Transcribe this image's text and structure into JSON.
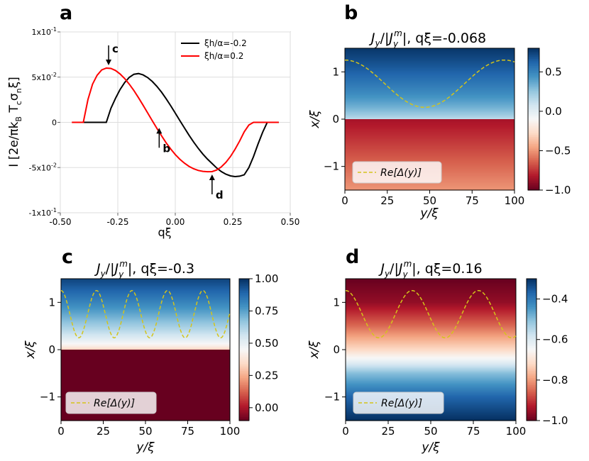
{
  "panel_labels": {
    "a": "a",
    "b": "b",
    "c": "c",
    "d": "d"
  },
  "colors": {
    "black_curve": "#000000",
    "red_curve": "#ff0000",
    "dashed_line": "#d4c41a",
    "cmap_low": "#67001f",
    "cmap_mid": "#f7f7f7",
    "cmap_high": "#053061"
  },
  "chart_data": [
    {
      "panel": "a",
      "type": "line",
      "title": "",
      "xlabel": "qξ",
      "ylabel": "I [2e/πk_B T_c σ_n ξ]",
      "ylabel_parts": {
        "main": "I [2e/πk",
        "s1": "B",
        "mid": " T",
        "s2": "c",
        "mid2": "σ",
        "s3": "n",
        "end": "ξ]"
      },
      "xlim": [
        -0.5,
        0.5
      ],
      "ylim": [
        -0.1,
        0.1
      ],
      "x_ticks": [
        -0.5,
        -0.25,
        0.0,
        0.25,
        0.5
      ],
      "x_tick_labels": [
        "-0.50",
        "-0.25",
        "0.00",
        "0.25",
        "0.50"
      ],
      "y_ticks": [
        0.1,
        0.05,
        0.0,
        -0.05,
        -0.1
      ],
      "y_tick_labels": [
        {
          "base": "1x10",
          "exp": "-1"
        },
        {
          "base": "5x10",
          "exp": "-2"
        },
        {
          "base": "0",
          "exp": ""
        },
        {
          "base": "-5x10",
          "exp": "-2"
        },
        {
          "base": "-1x10",
          "exp": "-1"
        }
      ],
      "grid": true,
      "legend_position": "top-right",
      "series": [
        {
          "name": "ξh/α=-0.2",
          "color": "#000000",
          "x": [
            -0.42,
            -0.3,
            -0.28,
            -0.26,
            -0.24,
            -0.22,
            -0.2,
            -0.18,
            -0.16,
            -0.14,
            -0.12,
            -0.1,
            -0.08,
            -0.06,
            -0.04,
            -0.02,
            0.0,
            0.02,
            0.04,
            0.06,
            0.08,
            0.1,
            0.12,
            0.14,
            0.16,
            0.18,
            0.2,
            0.22,
            0.24,
            0.26,
            0.28,
            0.3,
            0.32,
            0.34,
            0.36,
            0.38,
            0.4,
            0.45
          ],
          "y": [
            0.0,
            0.0,
            0.0155,
            0.0266,
            0.0363,
            0.0441,
            0.0498,
            0.0532,
            0.054,
            0.0525,
            0.0495,
            0.0452,
            0.0398,
            0.0334,
            0.0262,
            0.0184,
            0.0102,
            0.0019,
            -0.0063,
            -0.0143,
            -0.0218,
            -0.0288,
            -0.0351,
            -0.0407,
            -0.0455,
            -0.0504,
            -0.0544,
            -0.0573,
            -0.0592,
            -0.06,
            -0.0595,
            -0.058,
            -0.05,
            -0.038,
            -0.024,
            -0.011,
            0.0,
            0.0
          ]
        },
        {
          "name": "ξh/α=0.2",
          "color": "#ff0000",
          "x": [
            -0.45,
            -0.4,
            -0.38,
            -0.36,
            -0.34,
            -0.32,
            -0.3,
            -0.28,
            -0.26,
            -0.24,
            -0.22,
            -0.2,
            -0.18,
            -0.16,
            -0.14,
            -0.12,
            -0.1,
            -0.08,
            -0.06,
            -0.04,
            -0.02,
            0.0,
            0.02,
            0.04,
            0.06,
            0.08,
            0.1,
            0.12,
            0.14,
            0.16,
            0.18,
            0.2,
            0.22,
            0.24,
            0.26,
            0.28,
            0.3,
            0.32,
            0.34,
            0.45
          ],
          "y": [
            0.0,
            0.0,
            0.0251,
            0.0422,
            0.052,
            0.058,
            0.06,
            0.0596,
            0.0573,
            0.0535,
            0.0484,
            0.0422,
            0.0351,
            0.0272,
            0.019,
            0.0104,
            0.0018,
            -0.0067,
            -0.0148,
            -0.0225,
            -0.0294,
            -0.0356,
            -0.0409,
            -0.0452,
            -0.0487,
            -0.0514,
            -0.0532,
            -0.0542,
            -0.0546,
            -0.0545,
            -0.0527,
            -0.0493,
            -0.0443,
            -0.0377,
            -0.0298,
            -0.0206,
            -0.0104,
            -0.003,
            0.0,
            0.0
          ]
        }
      ],
      "annotations": [
        {
          "label": "c",
          "x": -0.29,
          "y": 0.06,
          "direction": "down"
        },
        {
          "label": "b",
          "x": -0.07,
          "y": -0.003,
          "direction": "up"
        },
        {
          "label": "d",
          "x": 0.16,
          "y": -0.0545,
          "direction": "up"
        }
      ]
    },
    {
      "panel": "b",
      "type": "heatmap",
      "title": "J_y/|J_y^m|, qξ=-0.068",
      "title_value": "qξ=-0.068",
      "xlabel": "y/ξ",
      "ylabel": "x/ξ",
      "xlim": [
        0,
        100
      ],
      "ylim": [
        -1.5,
        1.5
      ],
      "x_ticks": [
        0,
        25,
        50,
        75,
        100
      ],
      "y_ticks": [
        1,
        0,
        -1
      ],
      "y_tick_labels": [
        "1",
        "0",
        "−1"
      ],
      "colorbar": {
        "min": -1.0,
        "max": 0.8,
        "ticks": [
          0.5,
          0.0,
          -0.5,
          -1.0
        ],
        "tick_labels": [
          "0.5",
          "0.0",
          "−0.5",
          "−1.0"
        ]
      },
      "field": {
        "upper": {
          "at_zero": 0.1,
          "at_top": 0.78
        },
        "lower": {
          "at_zero": -0.85,
          "at_bottom": -0.5
        }
      },
      "dashed_line": {
        "label": "Re[Δ(y)]",
        "mean": 0.75,
        "amplitude": 0.5,
        "period": 94,
        "phase_shift": 0
      },
      "legend_position": "bottom-left"
    },
    {
      "panel": "c",
      "type": "heatmap",
      "title": "J_y/|J_y^m|, qξ=-0.3",
      "title_value": "qξ=-0.3",
      "xlabel": "y/ξ",
      "ylabel": "x/ξ",
      "xlim": [
        0,
        100
      ],
      "ylim": [
        -1.5,
        1.5
      ],
      "x_ticks": [
        0,
        25,
        50,
        75,
        100
      ],
      "y_ticks": [
        1,
        0,
        -1
      ],
      "y_tick_labels": [
        "1",
        "0",
        "−1"
      ],
      "colorbar": {
        "min": -0.1,
        "max": 1.0,
        "ticks": [
          1.0,
          0.75,
          0.5,
          0.25,
          0.0
        ],
        "tick_labels": [
          "1.00",
          "0.75",
          "0.50",
          "0.25",
          "0.00"
        ]
      },
      "field": {
        "upper": {
          "at_zero": 0.3,
          "at_top": 0.96
        },
        "lower": {
          "at_zero": -0.1,
          "at_bottom": -0.1
        }
      },
      "dashed_line": {
        "label": "Re[Δ(y)]",
        "mean": 0.75,
        "amplitude": 0.5,
        "period": 21,
        "phase_shift": 0
      },
      "legend_position": "bottom-left"
    },
    {
      "panel": "d",
      "type": "heatmap",
      "title": "J_y/|J_y^m|, qξ=0.16",
      "title_value": "qξ=0.16",
      "xlabel": "y/ξ",
      "ylabel": "x/ξ",
      "xlim": [
        0,
        100
      ],
      "ylim": [
        -1.5,
        1.5
      ],
      "x_ticks": [
        0,
        25,
        50,
        75,
        100
      ],
      "y_ticks": [
        1,
        0,
        -1
      ],
      "y_tick_labels": [
        "1",
        "0",
        "−1"
      ],
      "colorbar": {
        "min": -1.0,
        "max": -0.3,
        "ticks": [
          -0.4,
          -0.6,
          -0.8,
          -1.0
        ],
        "tick_labels": [
          "−0.4",
          "−0.6",
          "−0.8",
          "−1.0"
        ]
      },
      "field": {
        "profile": [
          [
            1.5,
            -1.0
          ],
          [
            1.0,
            -0.96
          ],
          [
            0.5,
            -0.85
          ],
          [
            0.0,
            -0.72
          ],
          [
            -0.25,
            -0.62
          ],
          [
            -0.5,
            -0.5
          ],
          [
            -1.0,
            -0.37
          ],
          [
            -1.5,
            -0.3
          ]
        ]
      },
      "dashed_line": {
        "label": "Re[Δ(y)]",
        "mean": 0.75,
        "amplitude": 0.5,
        "period": 39,
        "phase_shift": 0
      },
      "legend_position": "bottom-left"
    }
  ]
}
